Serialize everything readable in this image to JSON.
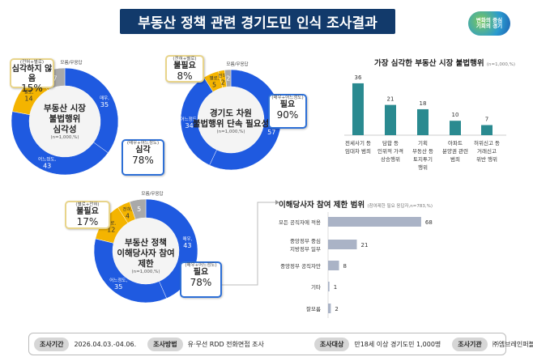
{
  "header": {
    "title": "부동산 정책 관련 경기도민 인식 조사결과",
    "logo_line1": "변화의 중심",
    "logo_line2": "기회의 경기"
  },
  "colors": {
    "very": "#1f5ae0",
    "some": "#1f5ae0",
    "notmuch": "#f4b400",
    "notatall": "#f4b400",
    "dk": "#a9a9a9",
    "bar": "#2a8a90",
    "hbar": "#aab3c6",
    "header": "#123a6b"
  },
  "donuts": [
    {
      "title": [
        "부동산 시장",
        "불법행위",
        "심각성"
      ],
      "note": "(n=1,000,%)",
      "segments": [
        {
          "label": "매우",
          "value": 35
        },
        {
          "label": "어느정도",
          "value": 43
        },
        {
          "label": "별로",
          "value": 14
        },
        {
          "label": "전혀",
          "value": 1
        },
        {
          "label": "모름/무응답",
          "value": 7
        }
      ],
      "neg": {
        "sub": "(전혀+별로)",
        "label": "심각하지 않음",
        "pct": "15%"
      },
      "pos": {
        "sub": "(매우+어느정도)",
        "label": "심각",
        "pct": "78%"
      }
    },
    {
      "title": [
        "경기도 차원",
        "불법행위 단속 필요성"
      ],
      "note": "(n=1,000,%)",
      "segments": [
        {
          "label": "매우",
          "value": 57
        },
        {
          "label": "어느정도",
          "value": 34
        },
        {
          "label": "별로",
          "value": 5
        },
        {
          "label": "전혀",
          "value": 2
        },
        {
          "label": "모름/무응답",
          "value": 2
        }
      ],
      "neg": {
        "sub": "(전혀+별로)",
        "label": "불필요",
        "pct": "8%"
      },
      "pos": {
        "sub": "(매우+어느정도)",
        "label": "필요",
        "pct": "90%"
      }
    },
    {
      "title": [
        "부동산 정책",
        "이해당사자 참여",
        "제한"
      ],
      "note": "(n=1,000,%)",
      "segments": [
        {
          "label": "매우",
          "value": 43
        },
        {
          "label": "어느정도",
          "value": 35
        },
        {
          "label": "별로",
          "value": 12
        },
        {
          "label": "전혀",
          "value": 4
        },
        {
          "label": "모름/무응답",
          "value": 5
        }
      ],
      "neg": {
        "sub": "(별로+전혀)",
        "label": "불필요",
        "pct": "17%"
      },
      "pos": {
        "sub": "(매우+어느정도)",
        "label": "필요",
        "pct": "78%"
      }
    }
  ],
  "chart_data": [
    {
      "type": "bar",
      "title": "가장 심각한 부동산 시장 불법행위",
      "note": "(n=1,000,%)",
      "categories": [
        "전세사기 등 임대차 범죄",
        "담합 등 인위적 가격 상승행위",
        "기획 부동산 등 토지투기 행위",
        "아파트 분양권 관련 범죄",
        "허위신고 등 거래신고 위반 행위"
      ],
      "category_lines": [
        [
          "전세사기 등",
          "임대차 범죄"
        ],
        [
          "담합 등",
          "인위적 가격",
          "상승행위"
        ],
        [
          "기획",
          "부동산 등",
          "토지투기",
          "행위"
        ],
        [
          "아파트",
          "분양권 관련",
          "범죄"
        ],
        [
          "허위신고 등",
          "거래신고",
          "위반 행위"
        ]
      ],
      "values": [
        36,
        21,
        18,
        10,
        7
      ]
    },
    {
      "type": "bar",
      "orientation": "horizontal",
      "title": "이해당사자 참여 제한 범위",
      "note": "(참여제한 필요 응답자,n=783,%)",
      "categories": [
        "모든 공직자에 적용",
        "중앙정부 중심 지방정부 일부",
        "중앙정부 공직자만",
        "기타",
        "잘모름"
      ],
      "category_lines": [
        [
          "모든 공직자에 적용"
        ],
        [
          "중앙정부 중심",
          "지방정부 일부"
        ],
        [
          "중앙정부 공직자만"
        ],
        [
          "기타"
        ],
        [
          "잘모름"
        ]
      ],
      "values": [
        68,
        21,
        8,
        1,
        2
      ]
    }
  ],
  "footer": [
    {
      "label": "조사기간",
      "value": "2026.04.03.-04.06."
    },
    {
      "label": "조사방법",
      "value": "유·무선 RDD 전화면접 조사"
    },
    {
      "label": "조사대상",
      "value": "만18세 이상 경기도민 1,000명"
    },
    {
      "label": "조사기관",
      "value": "㈜엠브레인퍼블릭"
    }
  ]
}
